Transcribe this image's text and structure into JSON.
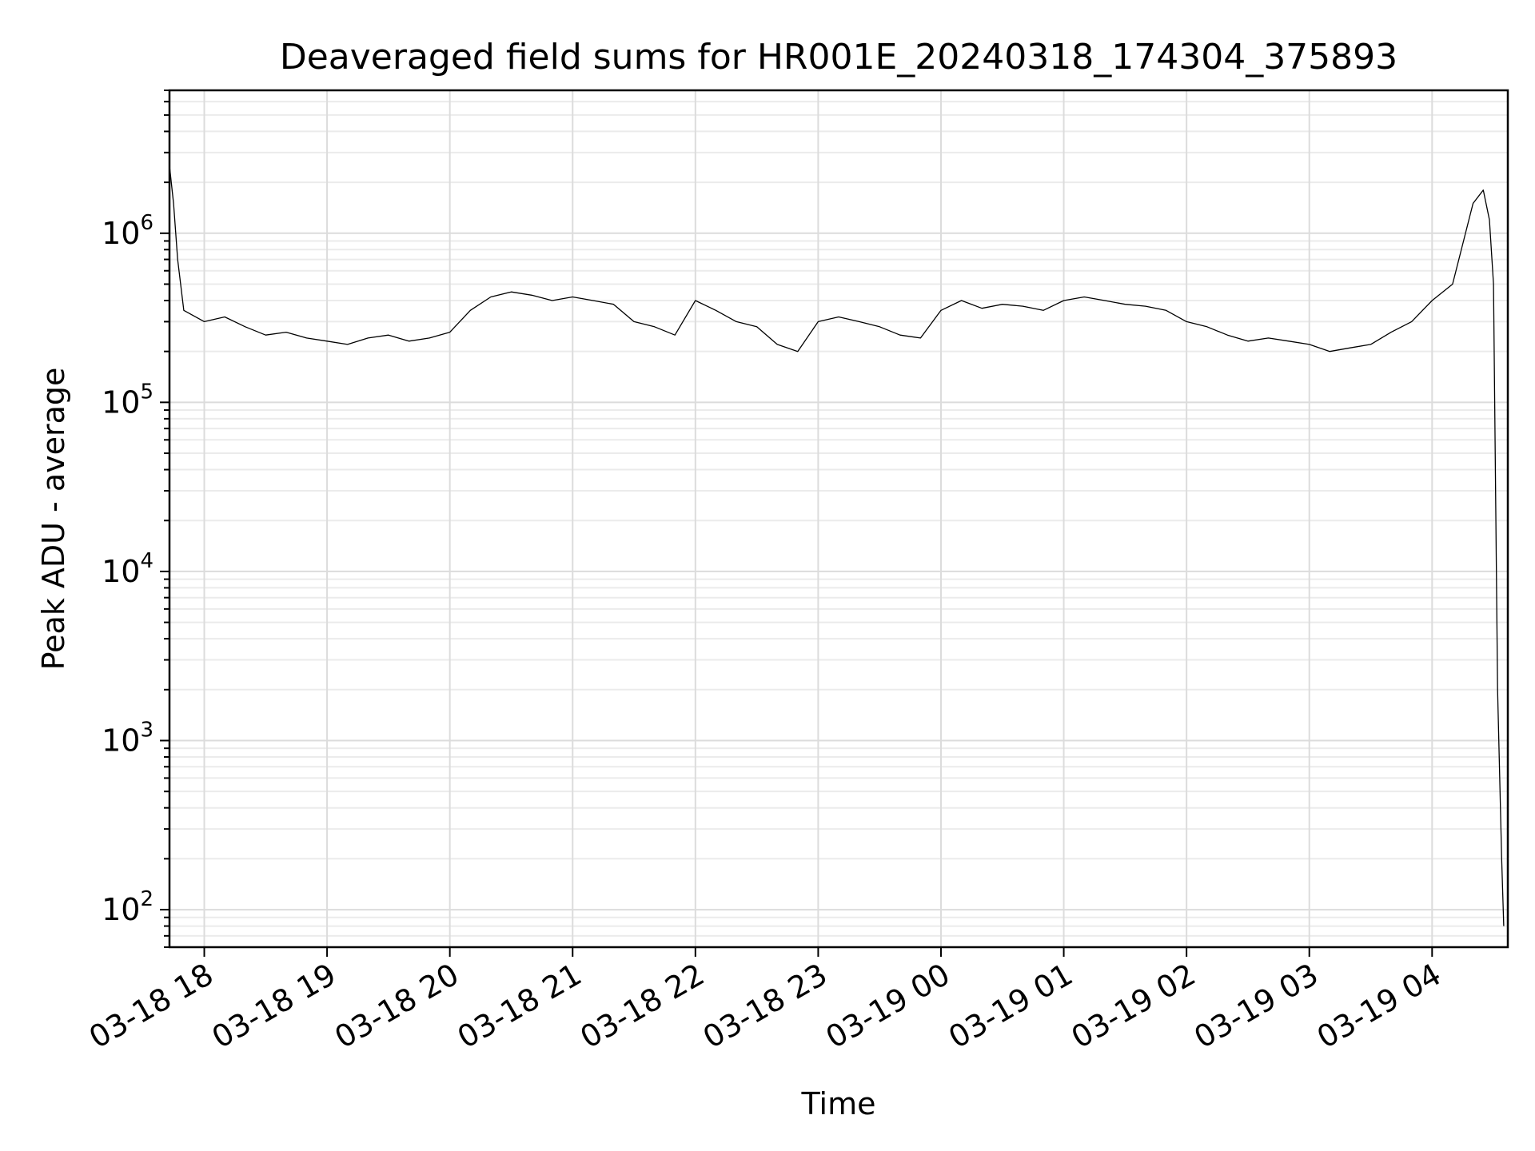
{
  "chart_data": {
    "type": "line",
    "title": "Deaveraged field sums for HR001E_20240318_174304_375893",
    "xlabel": "Time",
    "ylabel": "Peak ADU - average",
    "yscale": "log",
    "ylim": [
      60,
      7000000
    ],
    "xlim": [
      "2024-03-18 17:43",
      "2024-03-19 04:37"
    ],
    "grid": "both",
    "line_color": "#000000",
    "x_ticks": [
      {
        "value": "2024-03-18 18:00",
        "label": "03-18 18"
      },
      {
        "value": "2024-03-18 19:00",
        "label": "03-18 19"
      },
      {
        "value": "2024-03-18 20:00",
        "label": "03-18 20"
      },
      {
        "value": "2024-03-18 21:00",
        "label": "03-18 21"
      },
      {
        "value": "2024-03-18 22:00",
        "label": "03-18 22"
      },
      {
        "value": "2024-03-18 23:00",
        "label": "03-18 23"
      },
      {
        "value": "2024-03-19 00:00",
        "label": "03-19 00"
      },
      {
        "value": "2024-03-19 01:00",
        "label": "03-19 01"
      },
      {
        "value": "2024-03-19 02:00",
        "label": "03-19 02"
      },
      {
        "value": "2024-03-19 03:00",
        "label": "03-19 03"
      },
      {
        "value": "2024-03-19 04:00",
        "label": "03-19 04"
      }
    ],
    "y_ticks": [
      {
        "value": 100,
        "base": "10",
        "exp": "2"
      },
      {
        "value": 1000,
        "base": "10",
        "exp": "3"
      },
      {
        "value": 10000,
        "base": "10",
        "exp": "4"
      },
      {
        "value": 100000,
        "base": "10",
        "exp": "5"
      },
      {
        "value": 1000000,
        "base": "10",
        "exp": "6"
      }
    ],
    "series": [
      {
        "x": [
          "2024-03-18 17:43",
          "2024-03-18 17:45",
          "2024-03-18 17:47",
          "2024-03-18 17:50",
          "2024-03-18 18:00",
          "2024-03-18 18:10",
          "2024-03-18 18:20",
          "2024-03-18 18:30",
          "2024-03-18 18:40",
          "2024-03-18 18:50",
          "2024-03-18 19:00",
          "2024-03-18 19:10",
          "2024-03-18 19:20",
          "2024-03-18 19:30",
          "2024-03-18 19:40",
          "2024-03-18 19:50",
          "2024-03-18 20:00",
          "2024-03-18 20:10",
          "2024-03-18 20:20",
          "2024-03-18 20:30",
          "2024-03-18 20:40",
          "2024-03-18 20:50",
          "2024-03-18 21:00",
          "2024-03-18 21:10",
          "2024-03-18 21:20",
          "2024-03-18 21:30",
          "2024-03-18 21:40",
          "2024-03-18 21:50",
          "2024-03-18 22:00",
          "2024-03-18 22:10",
          "2024-03-18 22:20",
          "2024-03-18 22:30",
          "2024-03-18 22:40",
          "2024-03-18 22:50",
          "2024-03-18 23:00",
          "2024-03-18 23:10",
          "2024-03-18 23:20",
          "2024-03-18 23:30",
          "2024-03-18 23:40",
          "2024-03-18 23:50",
          "2024-03-19 00:00",
          "2024-03-19 00:10",
          "2024-03-19 00:20",
          "2024-03-19 00:30",
          "2024-03-19 00:40",
          "2024-03-19 00:50",
          "2024-03-19 01:00",
          "2024-03-19 01:10",
          "2024-03-19 01:20",
          "2024-03-19 01:30",
          "2024-03-19 01:40",
          "2024-03-19 01:50",
          "2024-03-19 02:00",
          "2024-03-19 02:10",
          "2024-03-19 02:20",
          "2024-03-19 02:30",
          "2024-03-19 02:40",
          "2024-03-19 02:50",
          "2024-03-19 03:00",
          "2024-03-19 03:10",
          "2024-03-19 03:20",
          "2024-03-19 03:30",
          "2024-03-19 03:40",
          "2024-03-19 03:50",
          "2024-03-19 04:00",
          "2024-03-19 04:10",
          "2024-03-19 04:20",
          "2024-03-19 04:25",
          "2024-03-19 04:28",
          "2024-03-19 04:30",
          "2024-03-19 04:32",
          "2024-03-19 04:34",
          "2024-03-19 04:35"
        ],
        "y": [
          2500000,
          1500000,
          700000,
          350000,
          300000,
          320000,
          280000,
          250000,
          260000,
          240000,
          230000,
          220000,
          240000,
          250000,
          230000,
          240000,
          260000,
          350000,
          420000,
          450000,
          430000,
          400000,
          420000,
          400000,
          380000,
          300000,
          280000,
          250000,
          400000,
          350000,
          300000,
          280000,
          220000,
          200000,
          300000,
          320000,
          300000,
          280000,
          250000,
          240000,
          350000,
          400000,
          360000,
          380000,
          370000,
          350000,
          400000,
          420000,
          400000,
          380000,
          370000,
          350000,
          300000,
          280000,
          250000,
          230000,
          240000,
          230000,
          220000,
          200000,
          210000,
          220000,
          260000,
          300000,
          400000,
          500000,
          1500000,
          1800000,
          1200000,
          500000,
          2000,
          200,
          80
        ]
      }
    ]
  }
}
